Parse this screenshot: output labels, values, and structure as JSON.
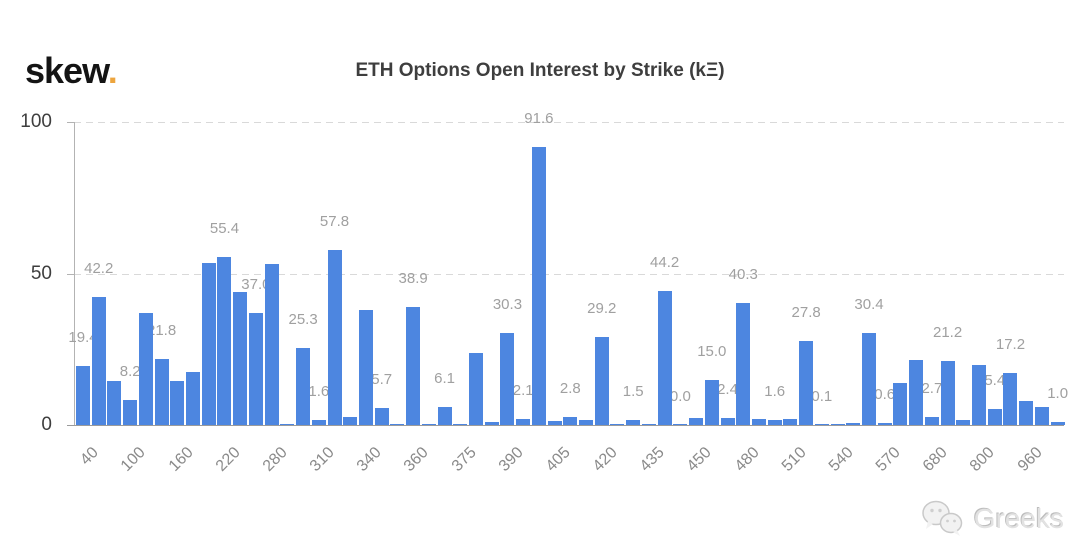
{
  "logo": {
    "text": "skew",
    "dot": "."
  },
  "watermark": {
    "text": "Greeks",
    "icon": "wechat-icon"
  },
  "colors": {
    "bar": "#4d86e0",
    "logo_dot": "#eda53e",
    "title": "#3e3e3e",
    "data_label": "#a0a0a0",
    "x_axis_label": "#8a8a8a",
    "y_axis_label": "#3e3e3e",
    "gridline": "#d9d9d9",
    "axis_line": "#9b9b9b",
    "watermark": "#e2e2e2"
  },
  "chart_data": {
    "type": "bar",
    "title": "ETH Options Open Interest by Strike (kΞ)",
    "xlabel": "",
    "ylabel": "",
    "unit": "kΞ",
    "ylim": [
      0,
      100
    ],
    "yticks": [
      {
        "v": 0,
        "label": "0"
      },
      {
        "v": 50,
        "label": "50"
      },
      {
        "v": 100,
        "label": "100"
      }
    ],
    "grid": "dashed-horizontal",
    "legend": "none",
    "x_tick_labels": [
      "40",
      "100",
      "160",
      "220",
      "280",
      "310",
      "340",
      "360",
      "375",
      "390",
      "405",
      "420",
      "435",
      "450",
      "480",
      "510",
      "540",
      "570",
      "680",
      "800",
      "960"
    ],
    "tick_every": 3,
    "bars": [
      {
        "v": 19.4,
        "label": "19.4"
      },
      {
        "v": 42.2,
        "label": "42.2"
      },
      {
        "v": 14.5,
        "label": ""
      },
      {
        "v": 8.2,
        "label": "8.2"
      },
      {
        "v": 37.0,
        "label": ""
      },
      {
        "v": 21.8,
        "label": "21.8"
      },
      {
        "v": 14.5,
        "label": ""
      },
      {
        "v": 17.5,
        "label": ""
      },
      {
        "v": 53.4,
        "label": ""
      },
      {
        "v": 55.4,
        "label": "55.4"
      },
      {
        "v": 44.0,
        "label": ""
      },
      {
        "v": 37.0,
        "label": "37.0"
      },
      {
        "v": 53.3,
        "label": ""
      },
      {
        "v": 0.3,
        "label": ""
      },
      {
        "v": 25.3,
        "label": "25.3"
      },
      {
        "v": 1.6,
        "label": "1.6"
      },
      {
        "v": 57.8,
        "label": "57.8"
      },
      {
        "v": 2.7,
        "label": ""
      },
      {
        "v": 37.8,
        "label": ""
      },
      {
        "v": 5.7,
        "label": "5.7"
      },
      {
        "v": 0.2,
        "label": ""
      },
      {
        "v": 38.9,
        "label": "38.9"
      },
      {
        "v": 0.2,
        "label": ""
      },
      {
        "v": 6.1,
        "label": "6.1"
      },
      {
        "v": 0.2,
        "label": ""
      },
      {
        "v": 23.7,
        "label": ""
      },
      {
        "v": 1.0,
        "label": ""
      },
      {
        "v": 30.3,
        "label": "30.3"
      },
      {
        "v": 2.1,
        "label": "2.1"
      },
      {
        "v": 91.6,
        "label": "91.6"
      },
      {
        "v": 1.3,
        "label": ""
      },
      {
        "v": 2.8,
        "label": "2.8"
      },
      {
        "v": 1.5,
        "label": ""
      },
      {
        "v": 29.2,
        "label": "29.2"
      },
      {
        "v": 0.1,
        "label": ""
      },
      {
        "v": 1.5,
        "label": "1.5"
      },
      {
        "v": 0.1,
        "label": ""
      },
      {
        "v": 44.2,
        "label": "44.2"
      },
      {
        "v": 0.0,
        "label": "0.0"
      },
      {
        "v": 2.4,
        "label": ""
      },
      {
        "v": 15.0,
        "label": "15.0"
      },
      {
        "v": 2.4,
        "label": "2.4"
      },
      {
        "v": 40.3,
        "label": "40.3"
      },
      {
        "v": 1.9,
        "label": ""
      },
      {
        "v": 1.6,
        "label": "1.6"
      },
      {
        "v": 1.9,
        "label": ""
      },
      {
        "v": 27.8,
        "label": "27.8"
      },
      {
        "v": 0.1,
        "label": "0.1"
      },
      {
        "v": 0.1,
        "label": ""
      },
      {
        "v": 0.6,
        "label": ""
      },
      {
        "v": 30.4,
        "label": "30.4"
      },
      {
        "v": 0.6,
        "label": "0.6"
      },
      {
        "v": 13.7,
        "label": ""
      },
      {
        "v": 21.4,
        "label": ""
      },
      {
        "v": 2.7,
        "label": "2.7"
      },
      {
        "v": 21.2,
        "label": "21.2"
      },
      {
        "v": 1.6,
        "label": ""
      },
      {
        "v": 19.7,
        "label": ""
      },
      {
        "v": 5.4,
        "label": "5.4"
      },
      {
        "v": 17.2,
        "label": "17.2"
      },
      {
        "v": 8.0,
        "label": ""
      },
      {
        "v": 6.0,
        "label": ""
      },
      {
        "v": 1.0,
        "label": "1.0"
      }
    ]
  }
}
